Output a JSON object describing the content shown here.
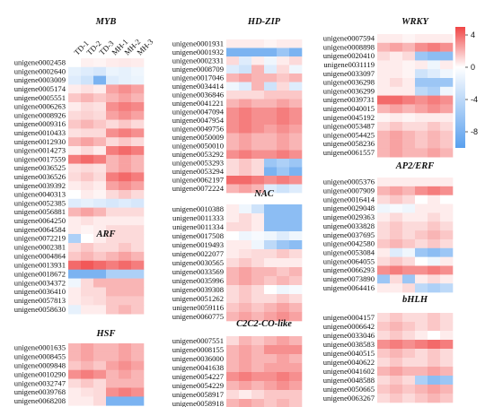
{
  "chart_data": {
    "type": "heatmap",
    "columns": [
      "TD-1",
      "TD-2",
      "TD-3",
      "MH-1",
      "MH-2",
      "MH-3"
    ],
    "colorbar": {
      "ticks": [
        4,
        0,
        -4,
        -8
      ],
      "min": -10,
      "max": 5
    },
    "panels": [
      {
        "title": "MYB",
        "rows": [
          "unigene0002458",
          "unigene0002640",
          "unigene0003009",
          "unigene0005174",
          "unigene0005551",
          "unigene0006263",
          "unigene0008926",
          "unigene0009316",
          "unigene0010433",
          "unigene0012930",
          "unigene0014273",
          "unigene0017559",
          "unigene0036525",
          "unigene0036526",
          "unigene0039392",
          "unigene0040313",
          "unigene0052385",
          "unigene0056881",
          "unigene0064250",
          "unigene0064584",
          "unigene0072219"
        ],
        "values": [
          [
            0,
            0.4,
            0.3,
            0.5,
            0.6,
            0.5
          ],
          [
            -1.5,
            -2,
            -2.5,
            -1.2,
            -1.5,
            -1
          ],
          [
            -2,
            -3,
            -8,
            -2,
            -1.5,
            -1.2
          ],
          [
            0.5,
            0.8,
            0.5,
            2.5,
            3,
            2.5
          ],
          [
            1.5,
            2,
            1.5,
            2,
            2.5,
            2
          ],
          [
            0.5,
            1,
            0.8,
            3,
            3.5,
            3.2
          ],
          [
            1,
            1.2,
            1,
            2.5,
            3,
            2.5
          ],
          [
            1.5,
            2,
            1.5,
            1,
            1.5,
            1
          ],
          [
            0.8,
            1,
            1,
            3,
            3.5,
            3
          ],
          [
            2,
            2.5,
            2,
            1,
            1.5,
            1
          ],
          [
            0.5,
            1,
            0.5,
            3.5,
            4,
            3.5
          ],
          [
            3.5,
            4,
            3.5,
            2,
            2.5,
            2
          ],
          [
            0.8,
            1,
            0.8,
            2,
            2.5,
            2
          ],
          [
            1,
            1.5,
            1,
            3.5,
            4,
            3.5
          ],
          [
            0.5,
            0.8,
            0.5,
            2.5,
            3,
            2.5
          ],
          [
            0,
            0.5,
            0.3,
            1,
            1.5,
            1
          ],
          [
            -2,
            -1.5,
            -2,
            -2.5,
            -2,
            -2.5
          ],
          [
            2,
            2.5,
            2,
            1,
            1,
            1
          ],
          [
            0.5,
            0.8,
            0.5,
            0.5,
            0.5,
            0.5
          ],
          [
            0.5,
            0.3,
            0.5,
            1,
            1,
            1
          ],
          [
            -5,
            0,
            0.5,
            1,
            1,
            1
          ]
        ]
      },
      {
        "title": "ARF",
        "rows": [
          "unigene0002381",
          "unigene0004864",
          "unigene0013931",
          "unigene0018672",
          "unigene0034372",
          "unigene0036410",
          "unigene0057813",
          "unigene0058630"
        ],
        "values": [
          [
            1,
            1.5,
            1,
            1,
            1.5,
            1
          ],
          [
            1.5,
            2,
            1.5,
            2,
            2.5,
            2
          ],
          [
            4,
            4.5,
            4,
            3.5,
            4,
            3.5
          ],
          [
            -8,
            -8,
            -8,
            -5,
            -5,
            -5
          ],
          [
            -1,
            1,
            2,
            2,
            2,
            2
          ],
          [
            0.5,
            1,
            1,
            2,
            2,
            2
          ],
          [
            0.5,
            0.8,
            1,
            1.5,
            1.5,
            1.5
          ],
          [
            -1.5,
            0.5,
            0.5,
            1.5,
            2,
            1.5
          ]
        ]
      },
      {
        "title": "HSF",
        "rows": [
          "unigene0001635",
          "unigene0008455",
          "unigene0009848",
          "unigene0010290",
          "unigene0032747",
          "unigene0039768",
          "unigene0068208"
        ],
        "values": [
          [
            2,
            2.5,
            2,
            2,
            2.5,
            2
          ],
          [
            2,
            2.5,
            2,
            2,
            2.5,
            2
          ],
          [
            1.5,
            2,
            1.5,
            2.5,
            3,
            2.5
          ],
          [
            3,
            3.5,
            3,
            2,
            2.5,
            2
          ],
          [
            1,
            1.5,
            1,
            2,
            2,
            2
          ],
          [
            0.5,
            0.8,
            1,
            3,
            3.5,
            3
          ],
          [
            0.5,
            0.5,
            1,
            -8,
            -8,
            -8
          ]
        ]
      },
      {
        "title": "HD-ZIP",
        "rows": [
          "unigene0001931",
          "unigene0001932",
          "unigene0002331",
          "unigene0008709",
          "unigene0017046",
          "unigene0034414",
          "unigene0036846",
          "unigene0041221",
          "unigene0047094",
          "unigene0047954",
          "unigene0049756",
          "unigene0050009",
          "unigene0050010",
          "unigene0053292",
          "unigene0053293",
          "unigene0053294",
          "unigene0062197",
          "unigene0072224"
        ],
        "values": [
          [
            0.5,
            0.5,
            0.5,
            0.3,
            0.5,
            0.5
          ],
          [
            -8,
            -8,
            -8,
            -8,
            -6,
            -8
          ],
          [
            1,
            -2,
            0.5,
            -1,
            0.5,
            1
          ],
          [
            -2,
            -3,
            2,
            -2,
            1,
            -1
          ],
          [
            2,
            2.5,
            2,
            2,
            1.5,
            2
          ],
          [
            -1,
            -2,
            2,
            -3,
            1,
            -2
          ],
          [
            1,
            1,
            1,
            1.5,
            1.5,
            1.5
          ],
          [
            2,
            2.5,
            2,
            2,
            2.5,
            2
          ],
          [
            3,
            3.5,
            3,
            3,
            3.5,
            3
          ],
          [
            3,
            3.5,
            3,
            3,
            3.5,
            3
          ],
          [
            3,
            3.5,
            3,
            2.5,
            3,
            2.5
          ],
          [
            2,
            2.5,
            2,
            2,
            2.5,
            2
          ],
          [
            2,
            2.5,
            2,
            2,
            2.5,
            2
          ],
          [
            3,
            3.5,
            3,
            3,
            3.5,
            3
          ],
          [
            1,
            1.5,
            1,
            -6,
            -5,
            -6
          ],
          [
            1,
            1.5,
            1,
            -8,
            -6,
            -8
          ],
          [
            4,
            4,
            3.5,
            3,
            3.5,
            3
          ],
          [
            2,
            2.5,
            2,
            -2,
            -3,
            -2
          ]
        ]
      },
      {
        "title": "NAC",
        "rows": [
          "unigene0010388",
          "unigene0011333",
          "unigene0011334",
          "unigene0017508",
          "unigene0019493",
          "unigene0022077",
          "unigene0030565",
          "unigene0033569",
          "unigene0035996",
          "unigene0039308",
          "unigene0051262",
          "unigene0059116",
          "unigene0060775"
        ],
        "values": [
          [
            0.5,
            -1,
            -3,
            -7,
            -7,
            -7
          ],
          [
            0.5,
            1,
            0.5,
            -7,
            -7,
            -7
          ],
          [
            1,
            1,
            0.5,
            -7,
            -7,
            -7
          ],
          [
            0,
            -1,
            -0.5,
            -1,
            -2,
            -1
          ],
          [
            0.5,
            0.5,
            -1,
            -4,
            -6,
            -7
          ],
          [
            0.5,
            0.8,
            1,
            1,
            1.5,
            1
          ],
          [
            1,
            1.5,
            1,
            0.5,
            0.5,
            0.5
          ],
          [
            2,
            2.5,
            2,
            2,
            1.5,
            2
          ],
          [
            2,
            2.5,
            2,
            1.5,
            2,
            1.5
          ],
          [
            1,
            1.5,
            1,
            0,
            -1,
            -0.5
          ],
          [
            1,
            1.5,
            1,
            1,
            1.5,
            1
          ],
          [
            1.5,
            2,
            1.5,
            2,
            2.5,
            2
          ],
          [
            2,
            2.5,
            2,
            2.5,
            3,
            2.5
          ]
        ]
      },
      {
        "title": "C2C2-CO-like",
        "rows": [
          "unigene0007551",
          "unigene0008155",
          "unigene0036000",
          "unigene0041638",
          "unigene0054227",
          "unigene0054229",
          "unigene0058917",
          "unigene0058918"
        ],
        "values": [
          [
            1,
            2,
            1.5,
            2,
            2.5,
            2
          ],
          [
            2,
            2.5,
            2,
            3,
            3,
            3
          ],
          [
            2,
            2.5,
            2,
            2,
            2.5,
            2
          ],
          [
            2,
            2.5,
            2,
            2.5,
            2.5,
            2.5
          ],
          [
            3,
            3.5,
            3,
            3,
            3.5,
            3
          ],
          [
            2,
            2.5,
            2,
            2.5,
            3,
            2.5
          ],
          [
            1,
            0.5,
            1,
            1.5,
            1.5,
            1.5
          ],
          [
            2,
            2.5,
            2,
            1.5,
            2,
            1.5
          ]
        ]
      },
      {
        "title": "WRKY",
        "rows": [
          "unigene0007594",
          "unigene0008898",
          "unigene0020410",
          "unigene0031119",
          "unigene0033097",
          "unigene0036298",
          "unigene0036299",
          "unigene0039731",
          "unigene0040015",
          "unigene0045192",
          "unigene0053487",
          "unigene0054425",
          "unigene0058236",
          "unigene0061557"
        ],
        "values": [
          [
            0.5,
            0.5,
            0.3,
            0.5,
            0.5,
            0.5
          ],
          [
            2,
            2.5,
            2,
            3,
            3.5,
            3
          ],
          [
            1,
            0.5,
            1,
            -6,
            -7,
            -7
          ],
          [
            0.5,
            0.5,
            0.3,
            0.5,
            -1,
            0.5
          ],
          [
            0.5,
            0.5,
            0.3,
            -3,
            -2,
            -1
          ],
          [
            0.5,
            1,
            0.5,
            -6,
            -6,
            -6
          ],
          [
            0.5,
            0.5,
            0.5,
            -4,
            -5,
            -1
          ],
          [
            4,
            4,
            3.5,
            3,
            3.5,
            3
          ],
          [
            2,
            2.5,
            2,
            2.5,
            3,
            2.5
          ],
          [
            0.3,
            0.5,
            0.3,
            0.5,
            0.5,
            0.5
          ],
          [
            1,
            1.5,
            1,
            1,
            1.5,
            1
          ],
          [
            2,
            2.5,
            2,
            1.5,
            2,
            1.5
          ],
          [
            2,
            2.5,
            2,
            1.5,
            2,
            1.5
          ],
          [
            2,
            2.5,
            2,
            2,
            2.5,
            2
          ]
        ]
      },
      {
        "title": "AP2/ERF",
        "rows": [
          "unigene0005376",
          "unigene0007909",
          "unigene0016414",
          "unigene0029048",
          "unigene0029363",
          "unigene0033828",
          "unigene0037695",
          "unigene0042580",
          "unigene0053084",
          "unigene0064055",
          "unigene0066293",
          "unigene0073890",
          "unigene0064416"
        ],
        "values": [
          [
            0.5,
            0.5,
            0.5,
            0.5,
            0.5,
            0.5
          ],
          [
            2,
            2.5,
            2,
            3,
            3.5,
            3
          ],
          [
            1,
            1.5,
            1,
            0,
            0.5,
            0
          ],
          [
            -1,
            -0.5,
            -1,
            0.5,
            0.5,
            0.5
          ],
          [
            0.5,
            1,
            0.5,
            0.5,
            1,
            0.5
          ],
          [
            1,
            1.5,
            1,
            1,
            1.5,
            1
          ],
          [
            1,
            1.5,
            1,
            1.5,
            2,
            1.5
          ],
          [
            1.5,
            2,
            1.5,
            1,
            1.5,
            1
          ],
          [
            0.5,
            -2,
            -1,
            -6,
            -7,
            -6
          ],
          [
            1,
            1.5,
            1,
            0,
            -1,
            0.5
          ],
          [
            3,
            3.5,
            3,
            3,
            3.5,
            3
          ],
          [
            -6,
            1,
            -6,
            0.5,
            1,
            0.5
          ],
          [
            0.5,
            0.5,
            1,
            -4,
            -5,
            -4
          ]
        ]
      },
      {
        "title": "bHLH",
        "rows": [
          "unigene0004157",
          "unigene0006642",
          "unigene0033046",
          "unigene0038583",
          "unigene0040515",
          "unigene0040622",
          "unigene0041602",
          "unigene0048588",
          "unigene0050665",
          "unigene0063267"
        ],
        "values": [
          [
            1,
            1.5,
            1,
            1,
            1.5,
            1
          ],
          [
            1.5,
            2,
            1.5,
            1,
            1.5,
            1
          ],
          [
            1,
            1.5,
            1,
            0.5,
            0,
            0.5
          ],
          [
            3,
            3.5,
            3,
            3.5,
            4,
            3.5
          ],
          [
            1.5,
            2,
            1.5,
            1,
            1.5,
            1
          ],
          [
            1,
            1.5,
            1,
            1,
            1.5,
            1
          ],
          [
            2,
            2.5,
            2,
            2,
            2.5,
            2
          ],
          [
            1,
            1.5,
            1,
            -5,
            -7,
            -6
          ],
          [
            1.5,
            2,
            1.5,
            2,
            2.5,
            2
          ],
          [
            1,
            1.5,
            1,
            1.5,
            2,
            1.5
          ]
        ]
      }
    ]
  }
}
